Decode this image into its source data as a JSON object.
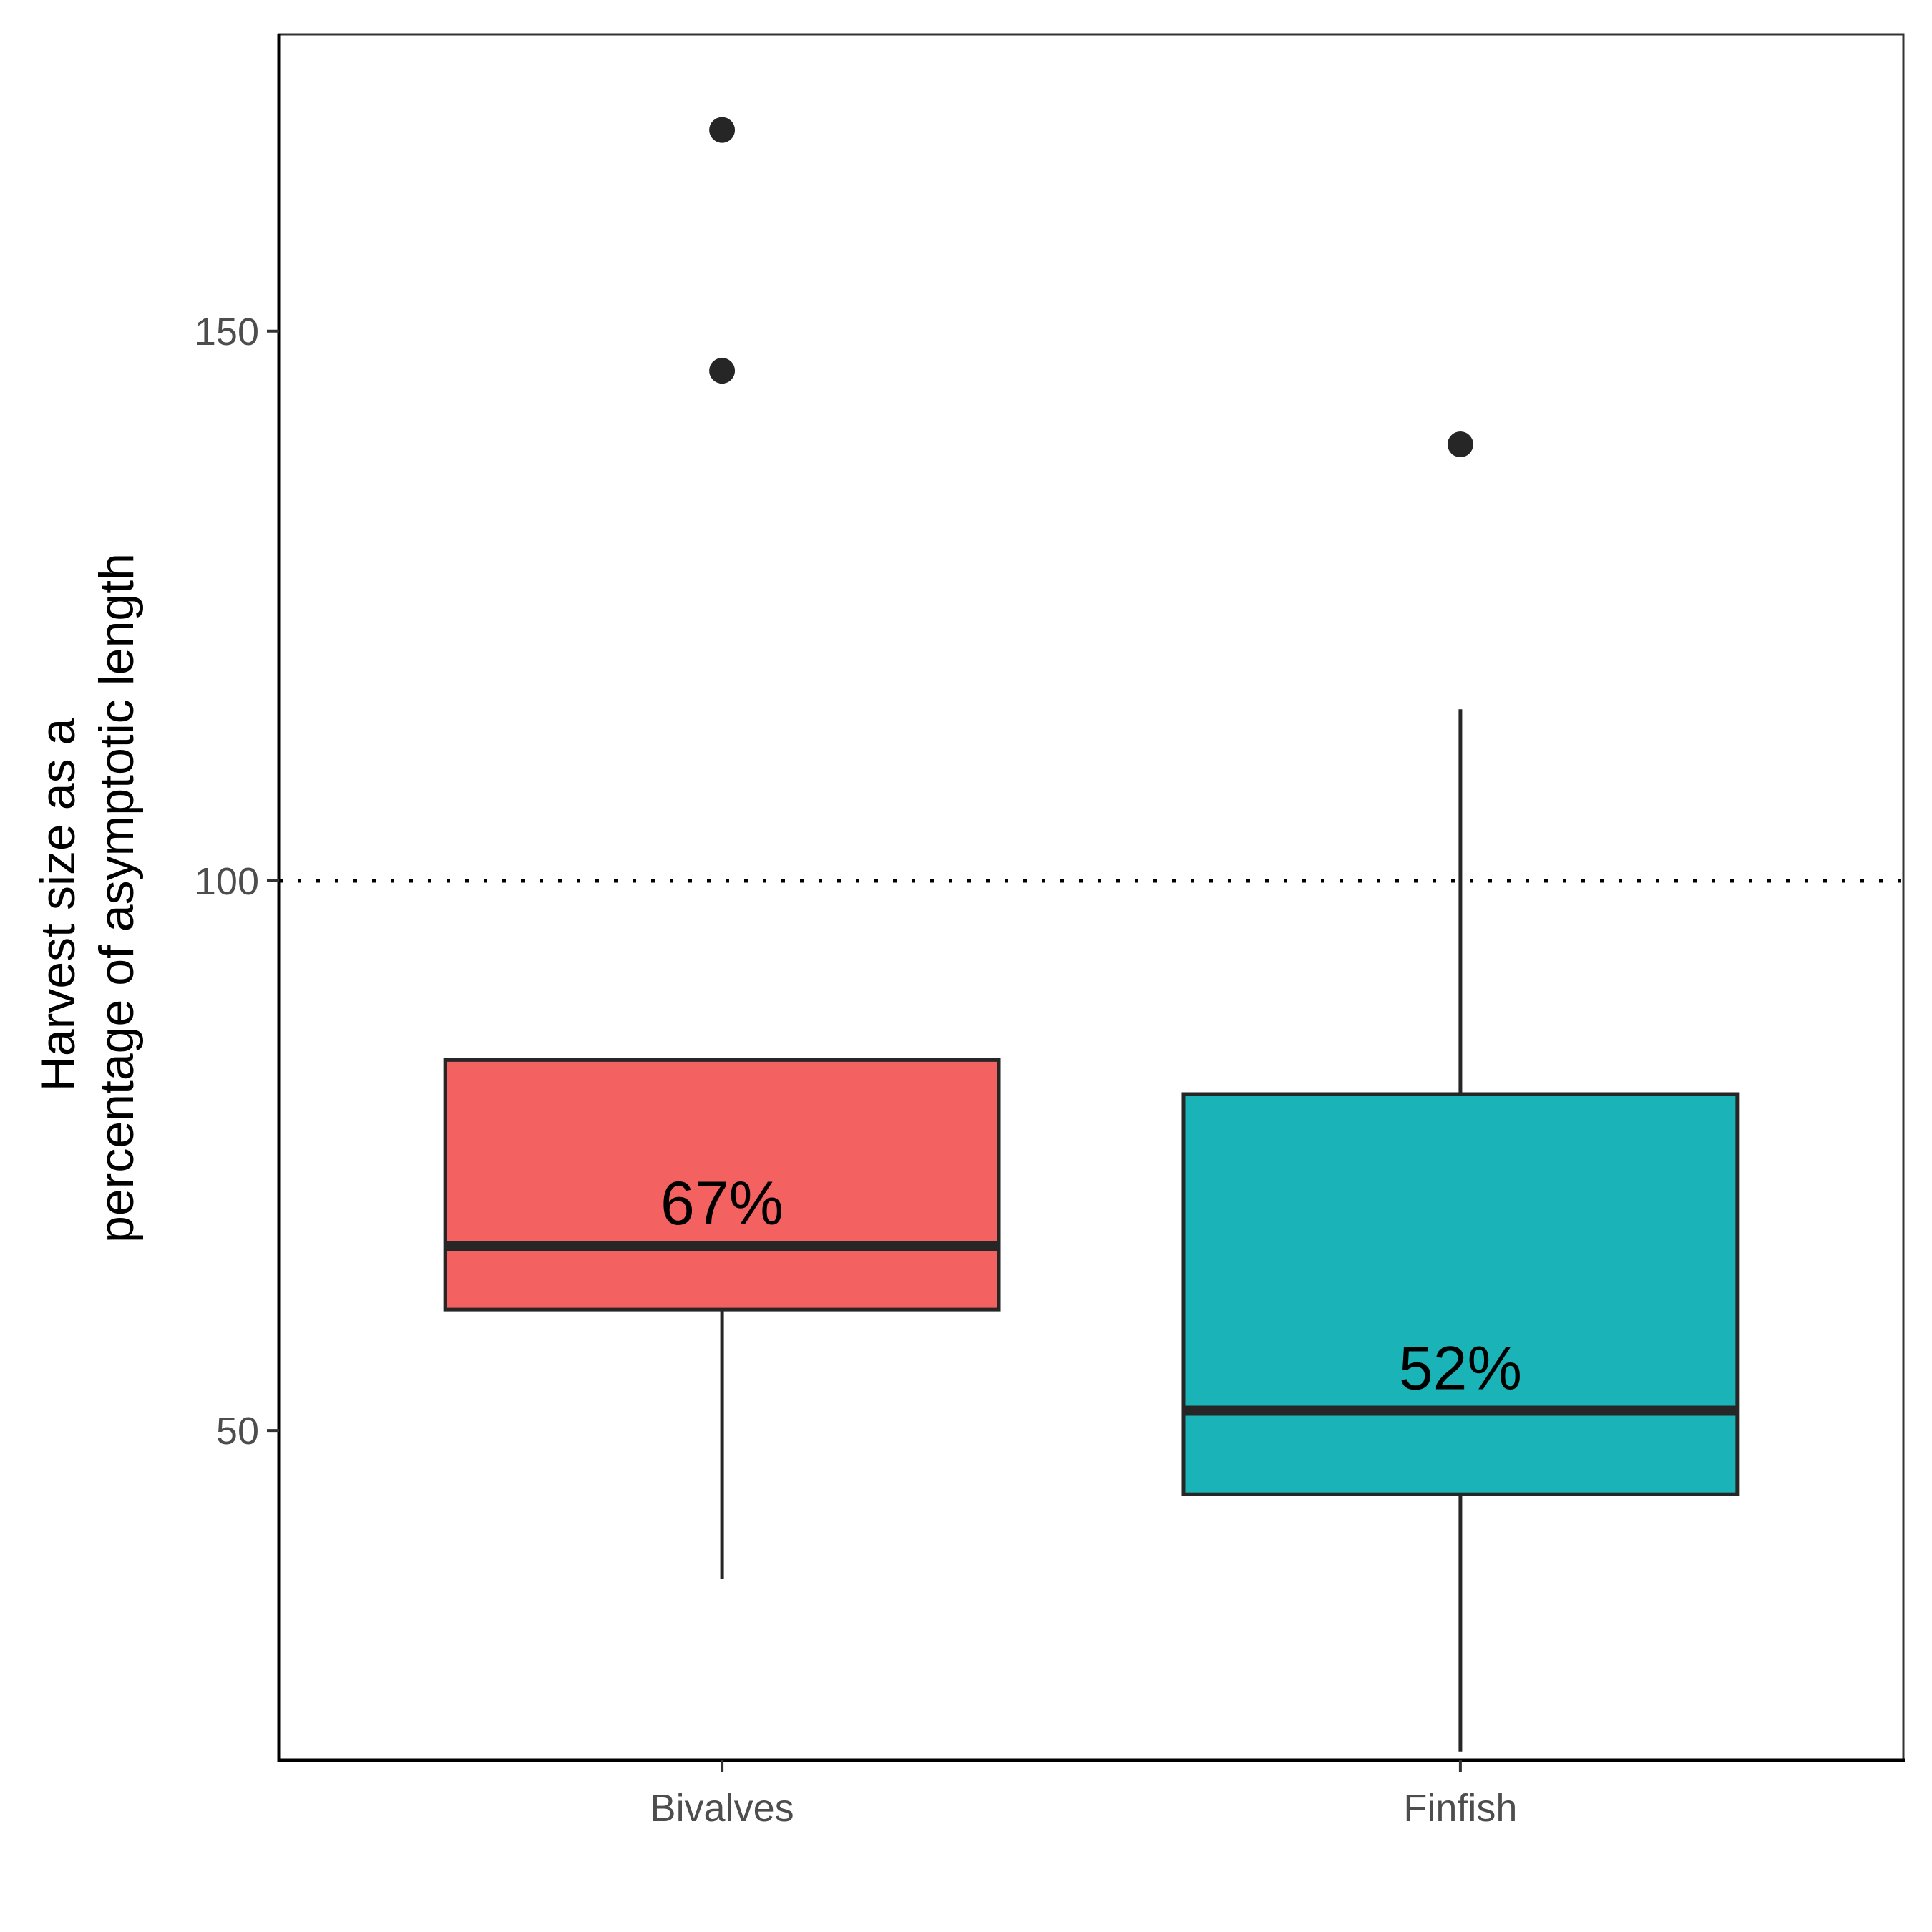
{
  "chart_data": {
    "type": "boxplot",
    "title": "",
    "xlabel": "",
    "ylabel_lines": [
      "Harvest size as a",
      "percentage of asymptotic length"
    ],
    "ylim": [
      20,
      177
    ],
    "yticks": [
      50,
      100,
      150
    ],
    "reference_line": {
      "y": 100,
      "style": "dotted"
    },
    "grid": false,
    "legend": "none",
    "categories": [
      "Bivalves",
      "Finfish"
    ],
    "boxes": [
      {
        "category": "Bivalves",
        "color": "#F36160",
        "whisker_low": 36.5,
        "q1": 61,
        "median": 66.8,
        "q3": 83.7,
        "whisker_high": 83.7,
        "outliers": [
          146.4,
          168.3
        ],
        "label": "67%"
      },
      {
        "category": "Finfish",
        "color": "#1AB3B8",
        "whisker_low": 20.8,
        "q1": 44.2,
        "median": 51.8,
        "q3": 80.6,
        "whisker_high": 115.6,
        "outliers": [
          139.7
        ],
        "label": "52%"
      }
    ]
  }
}
